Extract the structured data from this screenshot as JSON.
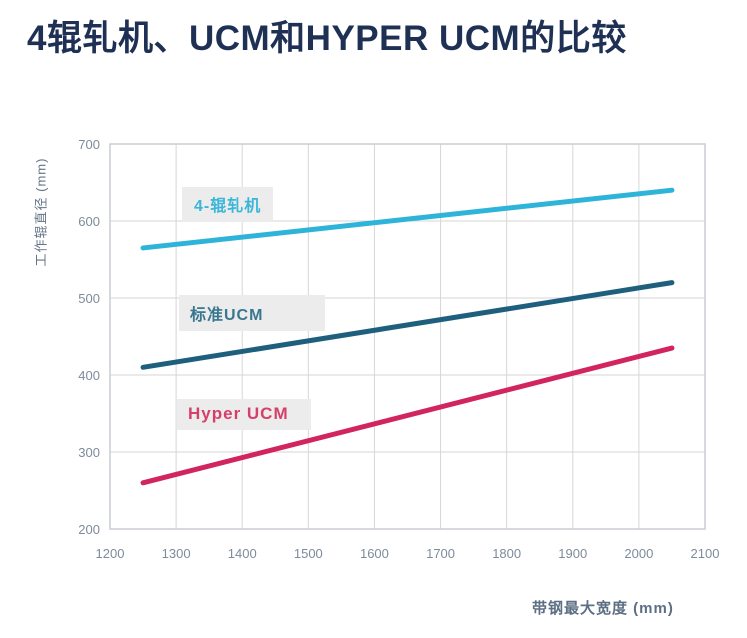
{
  "title": "4辊轧机、UCM和HYPER UCM的比较",
  "chart_data": {
    "type": "line",
    "title": "4辊轧机、UCM和HYPER UCM的比较",
    "xlabel": "带钢最大宽度 (mm)",
    "ylabel": "工作辊直径 (mm)",
    "xlim": [
      1200,
      2100
    ],
    "ylim": [
      200,
      700
    ],
    "xticks": [
      1200,
      1300,
      1400,
      1500,
      1600,
      1700,
      1800,
      1900,
      2000,
      2100
    ],
    "yticks": [
      200,
      300,
      400,
      500,
      600,
      700
    ],
    "grid": true,
    "grid_color": "#d6d6d6",
    "border_color": "#c9ced3",
    "legend_position": "inline-labels",
    "series": [
      {
        "name": "4-辊轧机",
        "color": "#2fb4d9",
        "label_color": "#3bb6d9",
        "points": [
          [
            1250,
            565
          ],
          [
            2050,
            640
          ]
        ]
      },
      {
        "name": "标准UCM",
        "color": "#1e5f7e",
        "label_color": "#39768f",
        "points": [
          [
            1250,
            410
          ],
          [
            2050,
            520
          ]
        ]
      },
      {
        "name": "Hyper UCM",
        "color": "#d2255f",
        "label_color": "#d63f69",
        "points": [
          [
            1250,
            260
          ],
          [
            2050,
            435
          ]
        ]
      }
    ]
  }
}
